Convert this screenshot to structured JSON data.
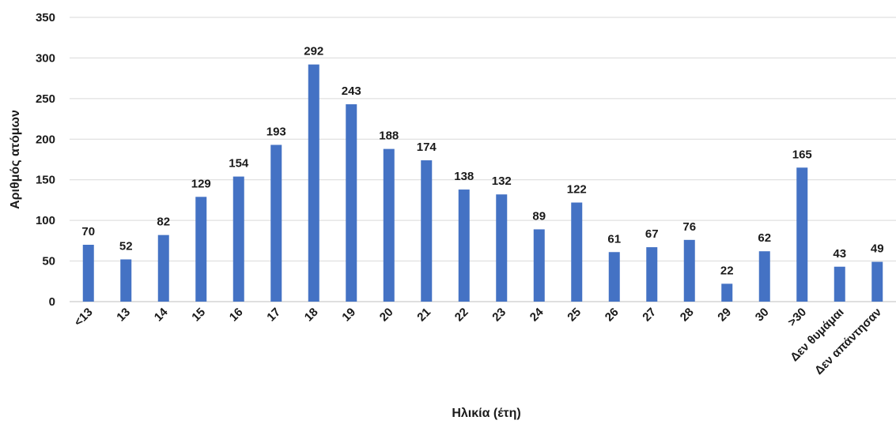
{
  "chart_data": {
    "type": "bar",
    "title": "",
    "xlabel": "Ηλικία (έτη)",
    "ylabel": "Αριθμός ατόμων",
    "ylim": [
      0,
      350
    ],
    "yticks": [
      "0",
      "50",
      "100",
      "150",
      "200",
      "250",
      "300",
      "350"
    ],
    "grid": true,
    "legend": "none",
    "color": "#4472C4",
    "categories": [
      "<13",
      "13",
      "14",
      "15",
      "16",
      "17",
      "18",
      "19",
      "20",
      "21",
      "22",
      "23",
      "24",
      "25",
      "26",
      "27",
      "28",
      "29",
      "30",
      ">30",
      "Δεν θυμάμαι",
      "Δεν απάντησαν"
    ],
    "values": [
      70,
      52,
      82,
      129,
      154,
      193,
      292,
      243,
      188,
      174,
      138,
      132,
      89,
      122,
      61,
      67,
      76,
      22,
      62,
      165,
      43,
      49
    ]
  }
}
